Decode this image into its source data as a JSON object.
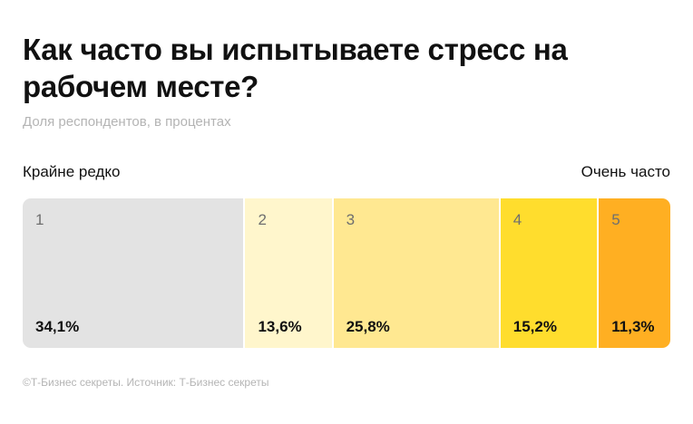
{
  "title": "Как часто вы испытываете стресс на рабочем месте?",
  "subtitle": "Доля респондентов, в процентах",
  "scale_left_label": "Крайне редко",
  "scale_right_label": "Очень часто",
  "footer": "©Т-Бизнес секреты. Источник: Т-Бизнес секреты",
  "chart_data": {
    "type": "bar",
    "orientation": "horizontal-stacked",
    "categories": [
      "1",
      "2",
      "3",
      "4",
      "5"
    ],
    "values": [
      34.1,
      13.6,
      25.8,
      15.2,
      11.3
    ],
    "value_labels": [
      "34,1%",
      "13,6%",
      "25,8%",
      "15,2%",
      "11,3%"
    ],
    "colors": [
      "#e3e3e3",
      "#fff6cc",
      "#ffe891",
      "#ffdd2d",
      "#ffaf22"
    ]
  }
}
